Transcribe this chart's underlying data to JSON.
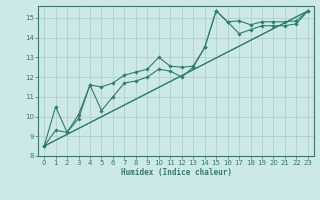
{
  "xlabel": "Humidex (Indice chaleur)",
  "xlim": [
    -0.5,
    23.5
  ],
  "ylim": [
    8,
    15.6
  ],
  "yticks": [
    8,
    9,
    10,
    11,
    12,
    13,
    14,
    15
  ],
  "xticks": [
    0,
    1,
    2,
    3,
    4,
    5,
    6,
    7,
    8,
    9,
    10,
    11,
    12,
    13,
    14,
    15,
    16,
    17,
    18,
    19,
    20,
    21,
    22,
    23
  ],
  "bg_color": "#cce8e8",
  "grid_color": "#aacccc",
  "line_color": "#2d7d6e",
  "line1_x": [
    0,
    1,
    2,
    3,
    4,
    5,
    6,
    7,
    8,
    9,
    10,
    11,
    12,
    13,
    14,
    15,
    16,
    17,
    18,
    19,
    20,
    21,
    22,
    23
  ],
  "line1_y": [
    8.5,
    10.5,
    9.2,
    9.9,
    11.6,
    11.5,
    11.7,
    12.1,
    12.25,
    12.4,
    13.0,
    12.55,
    12.5,
    12.55,
    13.5,
    15.35,
    14.8,
    14.85,
    14.65,
    14.8,
    14.8,
    14.8,
    14.85,
    15.35
  ],
  "line2_x": [
    0,
    1,
    2,
    3,
    4,
    5,
    6,
    7,
    8,
    9,
    10,
    11,
    12,
    13,
    14,
    15,
    16,
    17,
    18,
    19,
    20,
    21,
    22,
    23
  ],
  "line2_y": [
    8.5,
    9.3,
    9.2,
    10.1,
    11.6,
    10.3,
    11.0,
    11.7,
    11.8,
    12.0,
    12.4,
    12.3,
    12.0,
    12.5,
    13.5,
    15.35,
    14.8,
    14.2,
    14.4,
    14.6,
    14.6,
    14.6,
    14.7,
    15.35
  ],
  "line3_x": [
    0,
    23
  ],
  "line3_y": [
    8.5,
    15.35
  ],
  "line4_x": [
    0,
    23
  ],
  "line4_y": [
    8.5,
    15.35
  ]
}
